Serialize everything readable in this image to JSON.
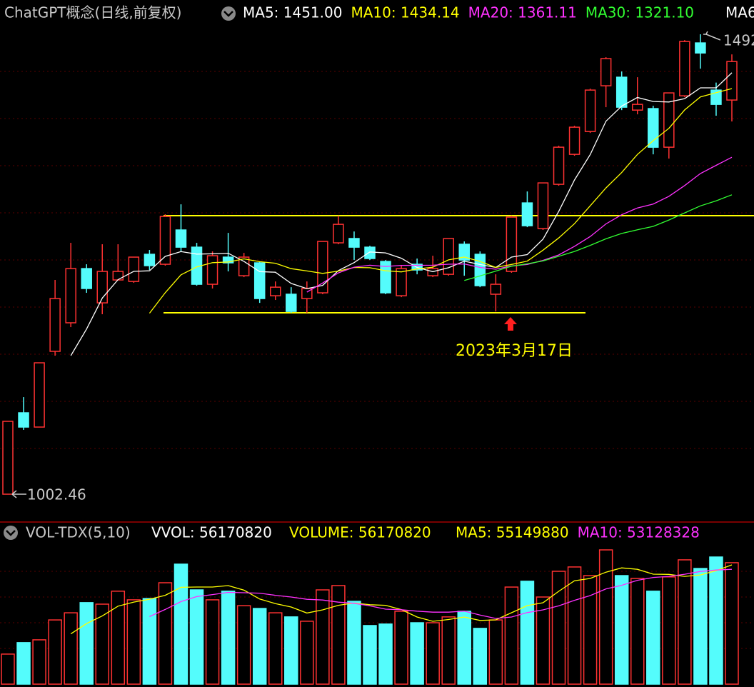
{
  "chart_data": [
    {
      "type": "candlestick",
      "title": "ChatGPT概念(日线,前复权)",
      "open": [
        1002.46,
        1089.1,
        1073.9,
        1154.5,
        1184.9,
        1242.6,
        1206.1,
        1230.5,
        1228.9,
        1257.8,
        1247.2,
        1283.7,
        1265.4,
        1225.9,
        1254.8,
        1235.0,
        1248.7,
        1213.7,
        1215.3,
        1210.7,
        1216.8,
        1270.0,
        1274.6,
        1265.4,
        1250.2,
        1213.7,
        1247.2,
        1235.0,
        1236.5,
        1268.5,
        1257.8,
        1215.3,
        1239.6,
        1312.5,
        1285.2,
        1332.3,
        1364.2,
        1388.5,
        1437.2,
        1446.3,
        1411.3,
        1412.9,
        1371.8,
        1426.5,
        1482.8,
        1432.6,
        1422.0
      ],
      "high": [
        1080.0,
        1105.8,
        1142.3,
        1230.5,
        1270.0,
        1247.2,
        1268.5,
        1268.5,
        1254.8,
        1262.4,
        1300.4,
        1311.0,
        1270.0,
        1260.9,
        1280.6,
        1259.3,
        1250.2,
        1228.9,
        1222.8,
        1228.9,
        1271.5,
        1298.9,
        1282.1,
        1266.9,
        1251.7,
        1245.7,
        1253.3,
        1256.3,
        1274.6,
        1271.5,
        1260.9,
        1236.5,
        1298.9,
        1324.7,
        1333.8,
        1373.4,
        1394.6,
        1434.1,
        1467.6,
        1452.4,
        1446.3,
        1415.9,
        1429.6,
        1485.8,
        1492,
        1440.6,
        1470.6
      ],
      "low": [
        1002.46,
        1070.9,
        1073.9,
        1149.9,
        1180.3,
        1216.8,
        1194.0,
        1230.5,
        1227.4,
        1241.1,
        1245.7,
        1260.9,
        1224.4,
        1221.4,
        1239.6,
        1233.5,
        1206.1,
        1209.2,
        1195.5,
        1195.5,
        1215.3,
        1268.5,
        1251.7,
        1251.7,
        1215.3,
        1212.2,
        1236.5,
        1233.5,
        1235.0,
        1235.0,
        1222.8,
        1197.0,
        1238.1,
        1286.7,
        1283.7,
        1330.8,
        1362.7,
        1387.0,
        1414.4,
        1411.3,
        1406.8,
        1364.2,
        1359.7,
        1425.0,
        1455.4,
        1405.3,
        1399.2
      ],
      "close": [
        1080.0,
        1073.9,
        1142.3,
        1210.7,
        1242.6,
        1221.4,
        1239.6,
        1239.6,
        1254.8,
        1245.7,
        1298.1,
        1265.4,
        1225.9,
        1256.3,
        1248.7,
        1254.8,
        1210.7,
        1222.8,
        1197.0,
        1221.4,
        1271.5,
        1289.7,
        1265.4,
        1253.3,
        1216.8,
        1242.6,
        1241.1,
        1242.6,
        1274.6,
        1251.7,
        1224.4,
        1225.9,
        1297.4,
        1288.2,
        1333.8,
        1371.8,
        1393.1,
        1432.6,
        1466.1,
        1414.4,
        1417.4,
        1371.8,
        1429.6,
        1484.3,
        1472.1,
        1417.4,
        1463.0
      ],
      "up_color": "#ff3232",
      "down_color": "#54fcfc",
      "lines": [
        {
          "name": "MA5",
          "legend": "MA5: 1451.00",
          "color": "#ffffff",
          "values": [
            null,
            null,
            null,
            null,
            1149.9,
            1178.2,
            1211.3,
            1230.8,
            1239.6,
            1240.2,
            1255.6,
            1260.7,
            1258.0,
            1258.3,
            1258.9,
            1250.2,
            1239.3,
            1238.7,
            1226.8,
            1221.3,
            1224.7,
            1240.5,
            1249.0,
            1260.3,
            1259.3,
            1253.6,
            1243.8,
            1239.3,
            1243.5,
            1250.5,
            1246.9,
            1243.8,
            1254.8,
            1257.5,
            1273.9,
            1303.4,
            1336.9,
            1363.9,
            1399.5,
            1415.6,
            1424.7,
            1420.5,
            1419.9,
            1423.5,
            1435.0,
            1435.0,
            1451.0
          ]
        },
        {
          "name": "MA10",
          "legend": "MA10: 1434.14",
          "color": "#ffff00",
          "values": [
            null,
            null,
            null,
            null,
            null,
            null,
            null,
            null,
            null,
            1195.1,
            1216.9,
            1236.0,
            1244.4,
            1248.9,
            1249.6,
            1252.9,
            1250.0,
            1248.3,
            1242.5,
            1240.1,
            1237.5,
            1239.9,
            1243.8,
            1243.5,
            1240.3,
            1239.1,
            1242.2,
            1244.1,
            1251.9,
            1254.9,
            1250.2,
            1243.8,
            1247.0,
            1250.5,
            1262.2,
            1275.2,
            1290.4,
            1309.4,
            1328.5,
            1344.8,
            1364.1,
            1378.7,
            1391.9,
            1411.5,
            1425.3,
            1429.9,
            1434.14
          ]
        },
        {
          "name": "MA20",
          "legend": "MA20: 1361.11",
          "color": "#ff32ff",
          "values": [
            null,
            null,
            null,
            null,
            null,
            null,
            null,
            null,
            null,
            null,
            null,
            null,
            null,
            null,
            null,
            null,
            null,
            null,
            null,
            1217.6,
            1227.2,
            1238.0,
            1244.1,
            1246.2,
            1244.9,
            1246.0,
            1246.1,
            1246.2,
            1247.2,
            1247.5,
            1243.8,
            1241.9,
            1245.4,
            1247.0,
            1251.3,
            1257.1,
            1266.3,
            1276.7,
            1290.2,
            1299.9,
            1307.1,
            1311.3,
            1319.5,
            1331.0,
            1343.8,
            1352.5,
            1361.11
          ]
        },
        {
          "name": "MA30",
          "legend": "MA30: 1321.10",
          "color": "#32ff32",
          "values": [
            null,
            null,
            null,
            null,
            null,
            null,
            null,
            null,
            null,
            null,
            null,
            null,
            null,
            null,
            null,
            null,
            null,
            null,
            null,
            null,
            null,
            null,
            null,
            null,
            null,
            null,
            null,
            null,
            null,
            1230.0,
            1234.8,
            1239.9,
            1245.1,
            1247.7,
            1250.7,
            1255.7,
            1260.8,
            1267.3,
            1274.3,
            1280.0,
            1283.9,
            1287.5,
            1294.3,
            1301.9,
            1309.3,
            1314.7,
            1321.1
          ]
        }
      ],
      "clipped_legend": "MA6",
      "levels": [
        1298.9,
        1195.5
      ],
      "annotation": "2023年3月17日"
    },
    {
      "type": "bar",
      "title": "VOL-TDX(5,10)",
      "vvol": "VVOL: 56170820",
      "volume_legend": "VOLUME: 56170820",
      "values": [
        13900000,
        19200000,
        20500000,
        29700000,
        33000000,
        37700000,
        37000000,
        43000000,
        39000000,
        39600000,
        46900000,
        55500000,
        43600000,
        39000000,
        43000000,
        36300000,
        35000000,
        33000000,
        31100000,
        29100000,
        43600000,
        45600000,
        38300000,
        27100000,
        27800000,
        33700000,
        28400000,
        28400000,
        31100000,
        33700000,
        25800000,
        29700000,
        44900000,
        47600000,
        40300000,
        52200000,
        54200000,
        50200000,
        62100000,
        50200000,
        48900000,
        43000000,
        49600000,
        57500000,
        53500000,
        58800000,
        56170820
      ],
      "lines": [
        {
          "name": "MA5",
          "legend": "MA5: 55149880",
          "color": "#ffff00",
          "values": [
            null,
            null,
            null,
            null,
            23260000,
            28020000,
            31580000,
            36080000,
            37940000,
            39260000,
            41100000,
            44800000,
            44920000,
            44920000,
            45600000,
            43480000,
            39380000,
            37260000,
            35680000,
            32900000,
            34360000,
            36480000,
            37540000,
            36740000,
            36480000,
            34500000,
            31060000,
            29080000,
            29880000,
            31060000,
            29480000,
            29740000,
            33040000,
            36340000,
            37660000,
            42940000,
            47840000,
            48900000,
            51800000,
            53780000,
            53120000,
            50880000,
            50760000,
            49840000,
            50500000,
            52480000,
            55149880
          ]
        },
        {
          "name": "MA10",
          "legend": "MA10: 53128328",
          "color": "#ff32ff",
          "values": [
            null,
            null,
            null,
            null,
            null,
            null,
            null,
            null,
            null,
            31260000,
            34560000,
            38190000,
            40500000,
            41430000,
            42430000,
            42290000,
            42090000,
            41090000,
            40300000,
            39250000,
            38920000,
            37930000,
            37400000,
            36210000,
            34690000,
            34430000,
            33770000,
            33310000,
            33310000,
            33770000,
            31990000,
            30400000,
            31060000,
            33110000,
            34360000,
            36210000,
            38790000,
            40970000,
            44070000,
            45720000,
            48030000,
            49360000,
            49830000,
            50820000,
            52140000,
            52800000,
            53128328
          ]
        }
      ]
    }
  ]
}
